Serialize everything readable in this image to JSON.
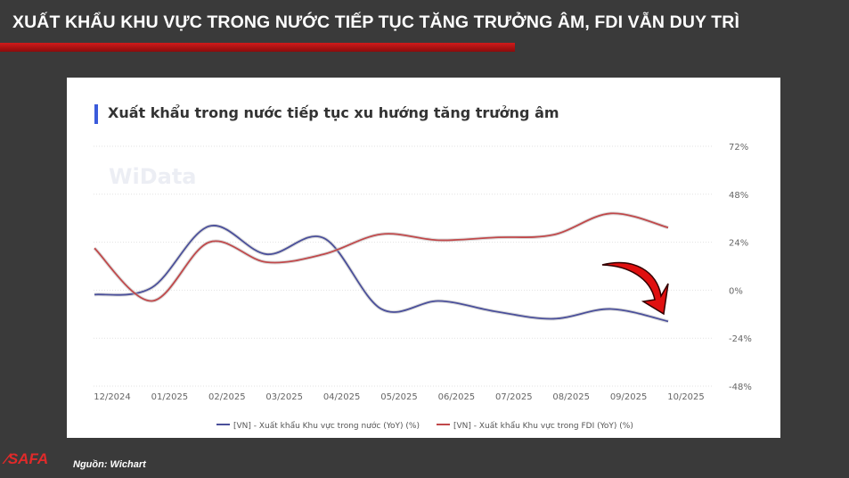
{
  "headline": "XUẤT KHẨU KHU VỰC TRONG NƯỚC TIẾP TỤC TĂNG TRƯỞNG ÂM, FDI VẪN DUY TRÌ",
  "source": "Nguồn: Wichart",
  "logo_text": "SAFA",
  "watermark": "WiData",
  "chart_data": {
    "type": "line",
    "title": "Xuất khẩu trong nước tiếp tục xu hướng tăng trưởng âm",
    "categories": [
      "12/2024",
      "01/2025",
      "02/2025",
      "03/2025",
      "04/2025",
      "05/2025",
      "06/2025",
      "07/2025",
      "08/2025",
      "09/2025",
      "10/2025"
    ],
    "yticks": [
      "72%",
      "48%",
      "24%",
      "0%",
      "-24%",
      "-48%"
    ],
    "ylim": [
      -48,
      72
    ],
    "y_axis_side": "right",
    "grid": true,
    "legend_position": "bottom",
    "series": [
      {
        "name": "[VN] - Xuất khẩu Khu vực trong nước (YoY) (%)",
        "color": "#4a4f9a",
        "values": [
          -2.2,
          1.3,
          32,
          18,
          26,
          -9.4,
          -5.4,
          -10.7,
          -14.3,
          -9.4,
          -15.6
        ]
      },
      {
        "name": "[VN] - Xuất khẩu Khu vực trong FDI (YoY) (%)",
        "color": "#c0484a",
        "values": [
          21,
          -5.4,
          24,
          14,
          18,
          28,
          25,
          26.4,
          27.7,
          38.4,
          31.3
        ]
      }
    ],
    "annotation": "red downward arrow near 10/2025"
  }
}
